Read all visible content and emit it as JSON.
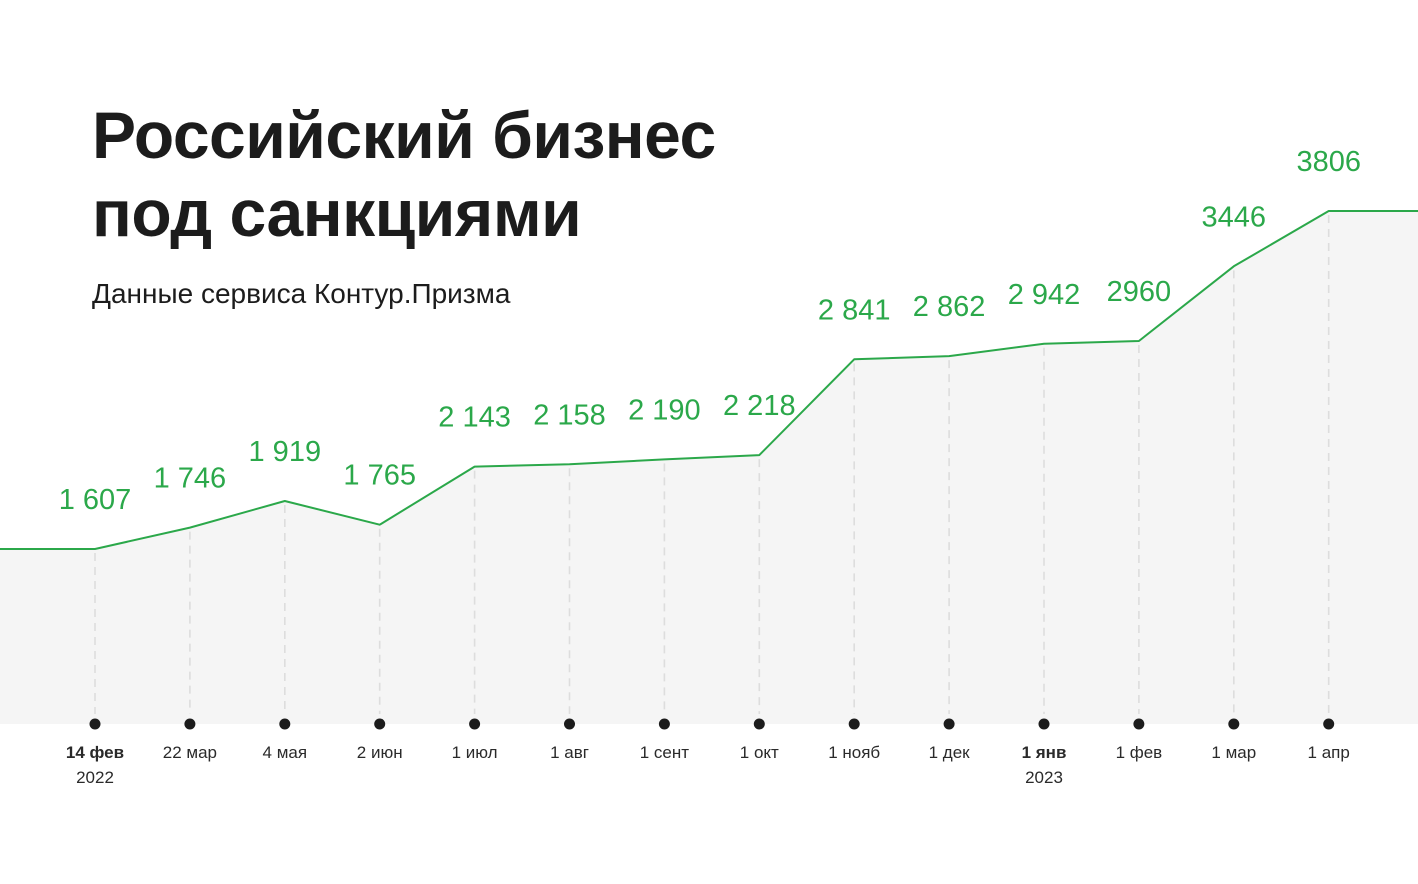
{
  "header": {
    "title_line1": "Российский бизнес",
    "title_line2": "под санкциями",
    "subtitle": "Данные сервиса Контур.Призма"
  },
  "colors": {
    "line": "#2ba84a",
    "label": "#2ba84a",
    "area": "#f5f5f5",
    "dot": "#1c1c1c",
    "grid": "#dddddd"
  },
  "chart_data": {
    "type": "line",
    "title": "Российский бизнес под санкциями",
    "subtitle": "Данные сервиса Контур.Призма",
    "x_dates": [
      "2022-02-14",
      "2022-03-22",
      "2022-05-04",
      "2022-06-02",
      "2022-07-01",
      "2022-08-01",
      "2022-09-01",
      "2022-10-01",
      "2022-11-01",
      "2022-12-01",
      "2023-01-01",
      "2023-02-01",
      "2023-03-01",
      "2023-04-01"
    ],
    "categories": [
      "14 фев 2022",
      "22 мар",
      "4 мая",
      "2 июн",
      "1 июл",
      "1 авг",
      "1 сент",
      "1 окт",
      "1 нояб",
      "1 дек",
      "1 янв 2023",
      "1 фев",
      "1 мар",
      "1 апр"
    ],
    "tick_labels": [
      {
        "main": "14 фев",
        "sub": "2022",
        "bold": true
      },
      {
        "main": "22 мар",
        "sub": "",
        "bold": false
      },
      {
        "main": "4 мая",
        "sub": "",
        "bold": false
      },
      {
        "main": "2 июн",
        "sub": "",
        "bold": false
      },
      {
        "main": "1 июл",
        "sub": "",
        "bold": false
      },
      {
        "main": "1 авг",
        "sub": "",
        "bold": false
      },
      {
        "main": "1 сент",
        "sub": "",
        "bold": false
      },
      {
        "main": "1 окт",
        "sub": "",
        "bold": false
      },
      {
        "main": "1 нояб",
        "sub": "",
        "bold": false
      },
      {
        "main": "1 дек",
        "sub": "",
        "bold": false
      },
      {
        "main": "1 янв",
        "sub": "2023",
        "bold": true
      },
      {
        "main": "1 фев",
        "sub": "",
        "bold": false
      },
      {
        "main": "1 мар",
        "sub": "",
        "bold": false
      },
      {
        "main": "1 апр",
        "sub": "",
        "bold": false
      }
    ],
    "values": [
      1607,
      1746,
      1919,
      1765,
      2143,
      2158,
      2190,
      2218,
      2841,
      2862,
      2942,
      2960,
      3446,
      3806
    ],
    "value_labels": [
      "1 607",
      "1 746",
      "1 919",
      "1 765",
      "2 143",
      "2 158",
      "2 190",
      "2 218",
      "2 841",
      "2 862",
      "2 942",
      "2960",
      "3446",
      "3806"
    ],
    "grid": false,
    "legend": "none"
  }
}
